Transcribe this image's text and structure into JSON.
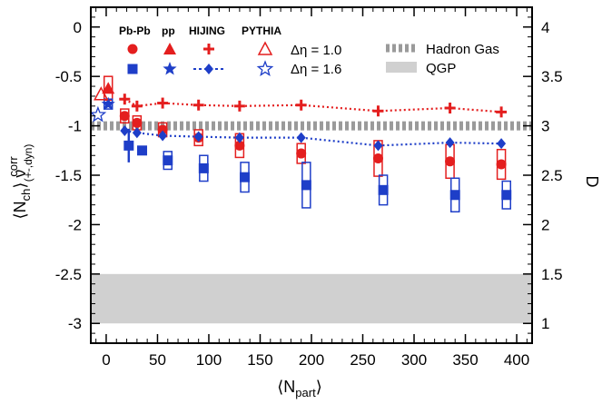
{
  "chart_data": {
    "type": "scatter",
    "x_axis": {
      "label": "⟨N",
      "label_sub": "part",
      "label_close": "⟩",
      "range": [
        -15,
        415
      ],
      "ticks": [
        "0",
        "50",
        "100",
        "150",
        "200",
        "250",
        "300",
        "350",
        "400"
      ]
    },
    "y_axis_left": {
      "label_main": "⟨N",
      "label_sub1": "ch",
      "label_mid": "⟩ ν",
      "label_sup": "corr",
      "label_sub2": "(+-,dyn)",
      "range": [
        -3.2,
        0.2
      ],
      "ticks": [
        "0",
        "-0.5",
        "-1",
        "-1.5",
        "-2",
        "-2.5",
        "-3"
      ]
    },
    "y_axis_right": {
      "label": "D",
      "range": [
        0.8,
        4.2
      ],
      "ticks": [
        "1",
        "1.5",
        "2",
        "2.5",
        "3",
        "3.5",
        "4"
      ]
    },
    "legend": {
      "headers": [
        "Pb-Pb",
        "pp",
        "HIJING",
        "PYTHIA"
      ],
      "rows": [
        "Δη = 1.0",
        "Δη = 1.6"
      ],
      "bands": [
        "Hadron Gas",
        "QGP"
      ],
      "placement": "top"
    },
    "colors": {
      "eta10": "#e41e1e",
      "eta16": "#1e3ec8",
      "hadron_gas": "#9a9a9a",
      "qgp": "#d0d0d0"
    },
    "bands": [
      {
        "name": "Hadron Gas",
        "y": -1.0,
        "style": "dashed"
      },
      {
        "name": "QGP",
        "y_range": [
          -3.0,
          -2.5
        ],
        "style": "filled"
      }
    ],
    "series": [
      {
        "name": "Pb-Pb, Δη = 1.0",
        "marker": "circle",
        "color": "eta10",
        "x": [
          18,
          30,
          55,
          90,
          130,
          190,
          265,
          335,
          385
        ],
        "y": [
          -0.9,
          -0.97,
          -1.04,
          -1.12,
          -1.2,
          -1.28,
          -1.33,
          -1.36,
          -1.39
        ],
        "sys": [
          0.07,
          0.07,
          0.07,
          0.08,
          0.12,
          0.1,
          0.18,
          0.17,
          0.15
        ]
      },
      {
        "name": "Pb-Pb, Δη = 1.6",
        "marker": "square",
        "color": "eta16",
        "x": [
          22,
          35,
          60,
          95,
          135,
          195,
          270,
          340,
          390
        ],
        "y": [
          -1.2,
          -1.25,
          -1.35,
          -1.43,
          -1.52,
          -1.6,
          -1.65,
          -1.7,
          -1.7
        ],
        "stat": [
          0.17,
          0.0,
          0.0,
          0.0,
          0.0,
          0.0,
          0.0,
          0.0,
          0.0
        ],
        "sys": [
          0.0,
          0.0,
          0.09,
          0.13,
          0.15,
          0.23,
          0.15,
          0.17,
          0.14
        ]
      },
      {
        "name": "pp, Δη = 1.0",
        "marker": "triangle",
        "color": "eta10",
        "x": [
          2
        ],
        "y": [
          -0.62
        ],
        "sys": [
          0.12
        ]
      },
      {
        "name": "pp, Δη = 1.6",
        "marker": "star",
        "color": "eta16",
        "x": [
          2
        ],
        "y": [
          -0.78
        ],
        "sys": [
          0.05
        ]
      },
      {
        "name": "HIJING, Δη = 1.0",
        "marker": "plus",
        "color": "eta10",
        "line": "dotted",
        "x": [
          18,
          30,
          55,
          90,
          130,
          190,
          265,
          335,
          385
        ],
        "y": [
          -0.73,
          -0.8,
          -0.77,
          -0.79,
          -0.8,
          -0.79,
          -0.85,
          -0.82,
          -0.86
        ]
      },
      {
        "name": "HIJING, Δη = 1.6",
        "marker": "diamond",
        "color": "eta16",
        "line": "dotted",
        "x": [
          18,
          30,
          55,
          90,
          130,
          190,
          265,
          335,
          385
        ],
        "y": [
          -1.05,
          -1.07,
          -1.1,
          -1.11,
          -1.12,
          -1.12,
          -1.2,
          -1.17,
          -1.18
        ]
      },
      {
        "name": "PYTHIA, Δη = 1.0",
        "marker": "triangle-open",
        "color": "eta10",
        "x": [
          -5
        ],
        "y": [
          -0.68
        ]
      },
      {
        "name": "PYTHIA, Δη = 1.6",
        "marker": "star-open",
        "color": "eta16",
        "x": [
          -8
        ],
        "y": [
          -0.89
        ]
      }
    ]
  }
}
